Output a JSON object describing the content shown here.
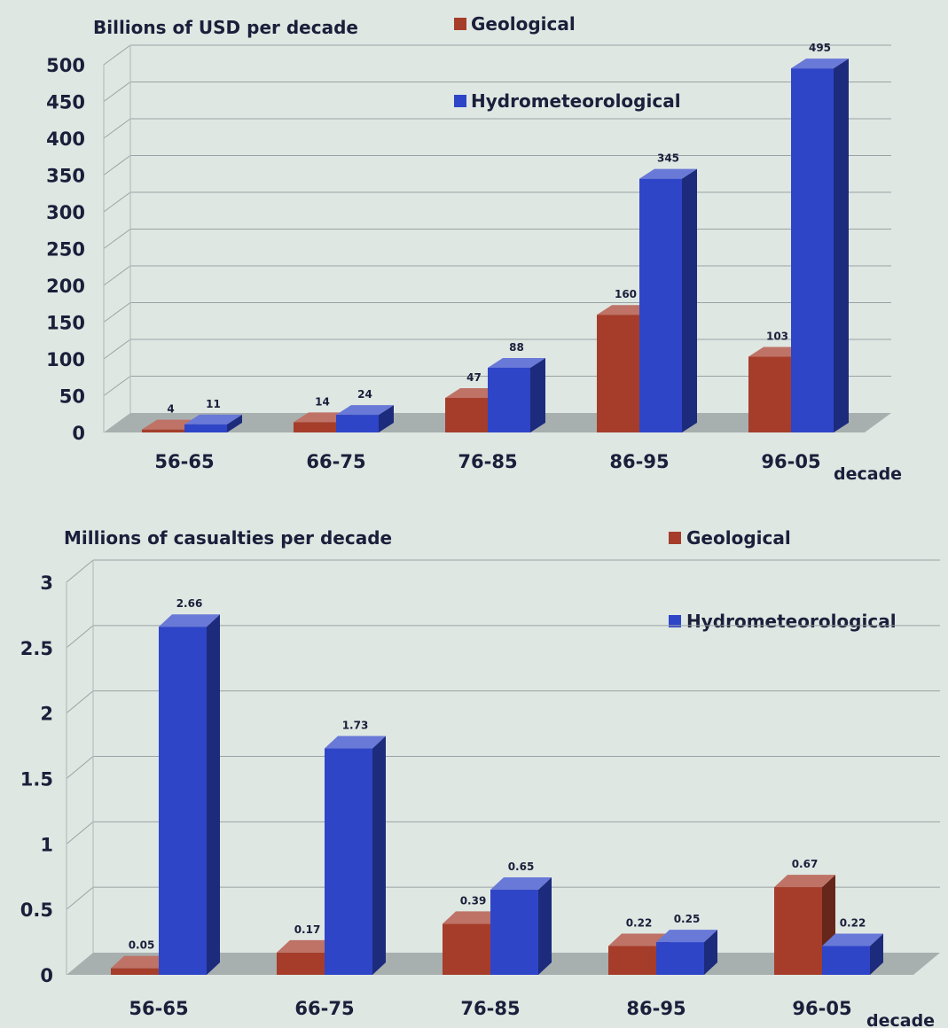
{
  "colors": {
    "geological": "#a53d2a",
    "hydrometeorological": "#2f45c8",
    "floor": "#9fa5a6",
    "background": "#dfe7e3"
  },
  "chart_data": [
    {
      "type": "bar",
      "title": "Billions of USD per decade",
      "xlabel": "decade",
      "ylabel": "",
      "categories": [
        "56-65",
        "66-75",
        "76-85",
        "86-95",
        "96-05"
      ],
      "series": [
        {
          "name": "Geological",
          "values": [
            4,
            14,
            47,
            160,
            103
          ],
          "labels": [
            "4",
            "14",
            "47",
            "160",
            "103"
          ]
        },
        {
          "name": "Hydrometeorological",
          "values": [
            11,
            24,
            88,
            345,
            495
          ],
          "labels": [
            "11",
            "24",
            "88",
            "345",
            "495"
          ]
        }
      ],
      "yticks": [
        "0",
        "50",
        "100",
        "150",
        "200",
        "250",
        "300",
        "350",
        "400",
        "450",
        "500"
      ],
      "ylim": [
        0,
        500
      ],
      "grid": true,
      "legend_position": "top"
    },
    {
      "type": "bar",
      "title": "Millions of casualties per decade",
      "xlabel": "decade",
      "ylabel": "",
      "categories": [
        "56-65",
        "66-75",
        "76-85",
        "86-95",
        "96-05"
      ],
      "series": [
        {
          "name": "Geological",
          "values": [
            0.05,
            0.17,
            0.39,
            0.22,
            0.67
          ],
          "labels": [
            "0.05",
            "0.17",
            "0.39",
            "0.22",
            "0.67"
          ]
        },
        {
          "name": "Hydrometeorological",
          "values": [
            2.66,
            1.73,
            0.65,
            0.25,
            0.22
          ],
          "labels": [
            "2.66",
            "1.73",
            "0.65",
            "0.25",
            "0.22"
          ]
        }
      ],
      "yticks": [
        "0",
        "0.5",
        "1",
        "1.5",
        "2",
        "2.5",
        "3"
      ],
      "ylim": [
        0,
        3
      ],
      "grid": true,
      "legend_position": "top-right"
    }
  ]
}
